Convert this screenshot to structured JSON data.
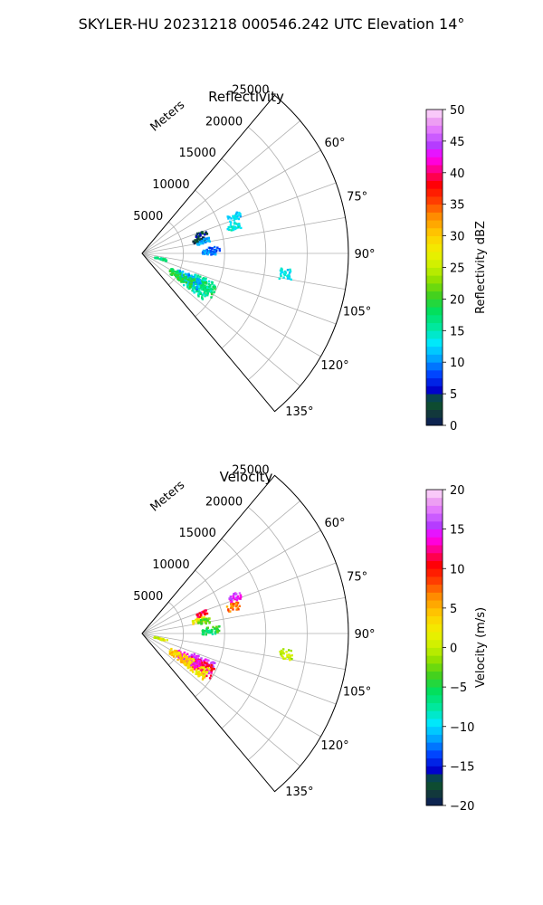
{
  "figure_title": "SKYLER-HU  20231218  000546.242 UTC Elevation 14°",
  "chart_data": [
    {
      "type": "polar-sector",
      "title": "Reflectivity",
      "range_label": "Meters",
      "range_ticks": [
        5000,
        10000,
        15000,
        20000,
        25000
      ],
      "range_max": 25000,
      "azimuth_range_deg": [
        40,
        140
      ],
      "azimuth_ticks": [
        "60°",
        "75°",
        "90°",
        "105°",
        "120°",
        "135°"
      ],
      "azimuth_tick_values": [
        60,
        75,
        90,
        105,
        120,
        135
      ],
      "colorbar": {
        "label": "Reflectivity dBZ",
        "min": 0,
        "max": 50,
        "ticks": [
          "0",
          "5",
          "10",
          "15",
          "20",
          "25",
          "30",
          "35",
          "40",
          "45",
          "50"
        ],
        "tick_values": [
          0,
          5,
          10,
          15,
          20,
          25,
          30,
          35,
          40,
          45,
          50
        ]
      },
      "echo_clusters": [
        {
          "az": 68,
          "range": 12000,
          "value": 12
        },
        {
          "az": 73,
          "range": 11500,
          "value": 14
        },
        {
          "az": 71,
          "range": 7500,
          "value": 4
        },
        {
          "az": 76,
          "range": 7000,
          "value": 2
        },
        {
          "az": 78,
          "range": 7500,
          "value": 11
        },
        {
          "az": 86,
          "range": 8500,
          "value": 8
        },
        {
          "az": 88,
          "range": 8000,
          "value": 10
        },
        {
          "az": 116,
          "range": 7800,
          "value": 15
        },
        {
          "az": 119,
          "range": 8200,
          "value": 18
        },
        {
          "az": 122,
          "range": 7500,
          "value": 16
        },
        {
          "az": 118,
          "range": 6200,
          "value": 11
        },
        {
          "az": 121,
          "range": 5400,
          "value": 19
        },
        {
          "az": 104,
          "range": 2200,
          "value": 17
        },
        {
          "az": 98,
          "range": 17500,
          "value": 13
        }
      ]
    },
    {
      "type": "polar-sector",
      "title": "Velocity",
      "range_label": "Meters",
      "range_ticks": [
        5000,
        10000,
        15000,
        20000,
        25000
      ],
      "range_max": 25000,
      "azimuth_range_deg": [
        40,
        140
      ],
      "azimuth_ticks": [
        "60°",
        "75°",
        "90°",
        "105°",
        "120°",
        "135°"
      ],
      "azimuth_tick_values": [
        60,
        75,
        90,
        105,
        120,
        135
      ],
      "colorbar": {
        "label": "Velocity (m/s)",
        "min": -20,
        "max": 20,
        "ticks": [
          "−20",
          "−15",
          "−10",
          "−5",
          "0",
          "5",
          "10",
          "15",
          "20"
        ],
        "tick_values": [
          -20,
          -15,
          -10,
          -5,
          0,
          5,
          10,
          15,
          20
        ]
      },
      "echo_clusters": [
        {
          "az": 68,
          "range": 12000,
          "value": 15
        },
        {
          "az": 73,
          "range": 11500,
          "value": 7
        },
        {
          "az": 71,
          "range": 7500,
          "value": 11
        },
        {
          "az": 76,
          "range": 7000,
          "value": 2
        },
        {
          "az": 78,
          "range": 7500,
          "value": -3
        },
        {
          "az": 86,
          "range": 8500,
          "value": -4
        },
        {
          "az": 88,
          "range": 8000,
          "value": -6
        },
        {
          "az": 116,
          "range": 7800,
          "value": 16
        },
        {
          "az": 119,
          "range": 8200,
          "value": 11
        },
        {
          "az": 122,
          "range": 7500,
          "value": 3
        },
        {
          "az": 118,
          "range": 6200,
          "value": 14
        },
        {
          "az": 121,
          "range": 5400,
          "value": 4
        },
        {
          "az": 104,
          "range": 2200,
          "value": 1
        },
        {
          "az": 98,
          "range": 17500,
          "value": 0
        }
      ]
    }
  ]
}
